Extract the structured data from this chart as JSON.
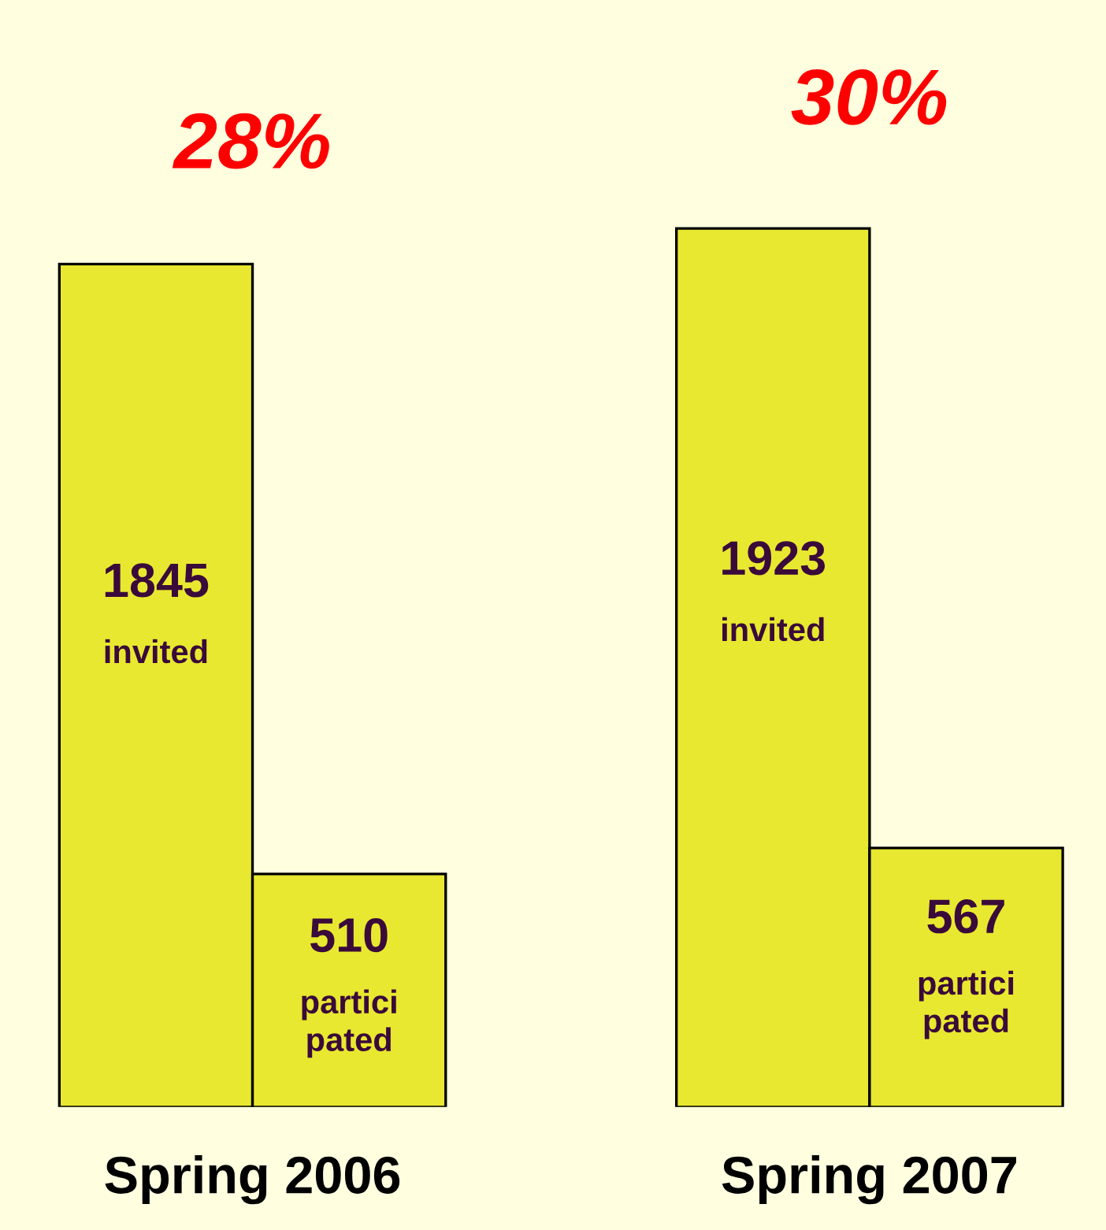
{
  "chart_data": {
    "type": "bar",
    "categories": [
      "Spring 2006",
      "Spring 2007"
    ],
    "series": [
      {
        "color": "#e8e830",
        "values": [
          1845,
          1923
        ],
        "value_labels": [
          "1845\ninvited",
          "1923\ninvited"
        ]
      },
      {
        "color": "#e8e830",
        "values": [
          510,
          567
        ],
        "value_labels": [
          "510\npartici\npated",
          "567\npartici\npated"
        ]
      }
    ],
    "annotations": [
      "28%",
      "30%"
    ],
    "grid": false,
    "legend": false
  }
}
